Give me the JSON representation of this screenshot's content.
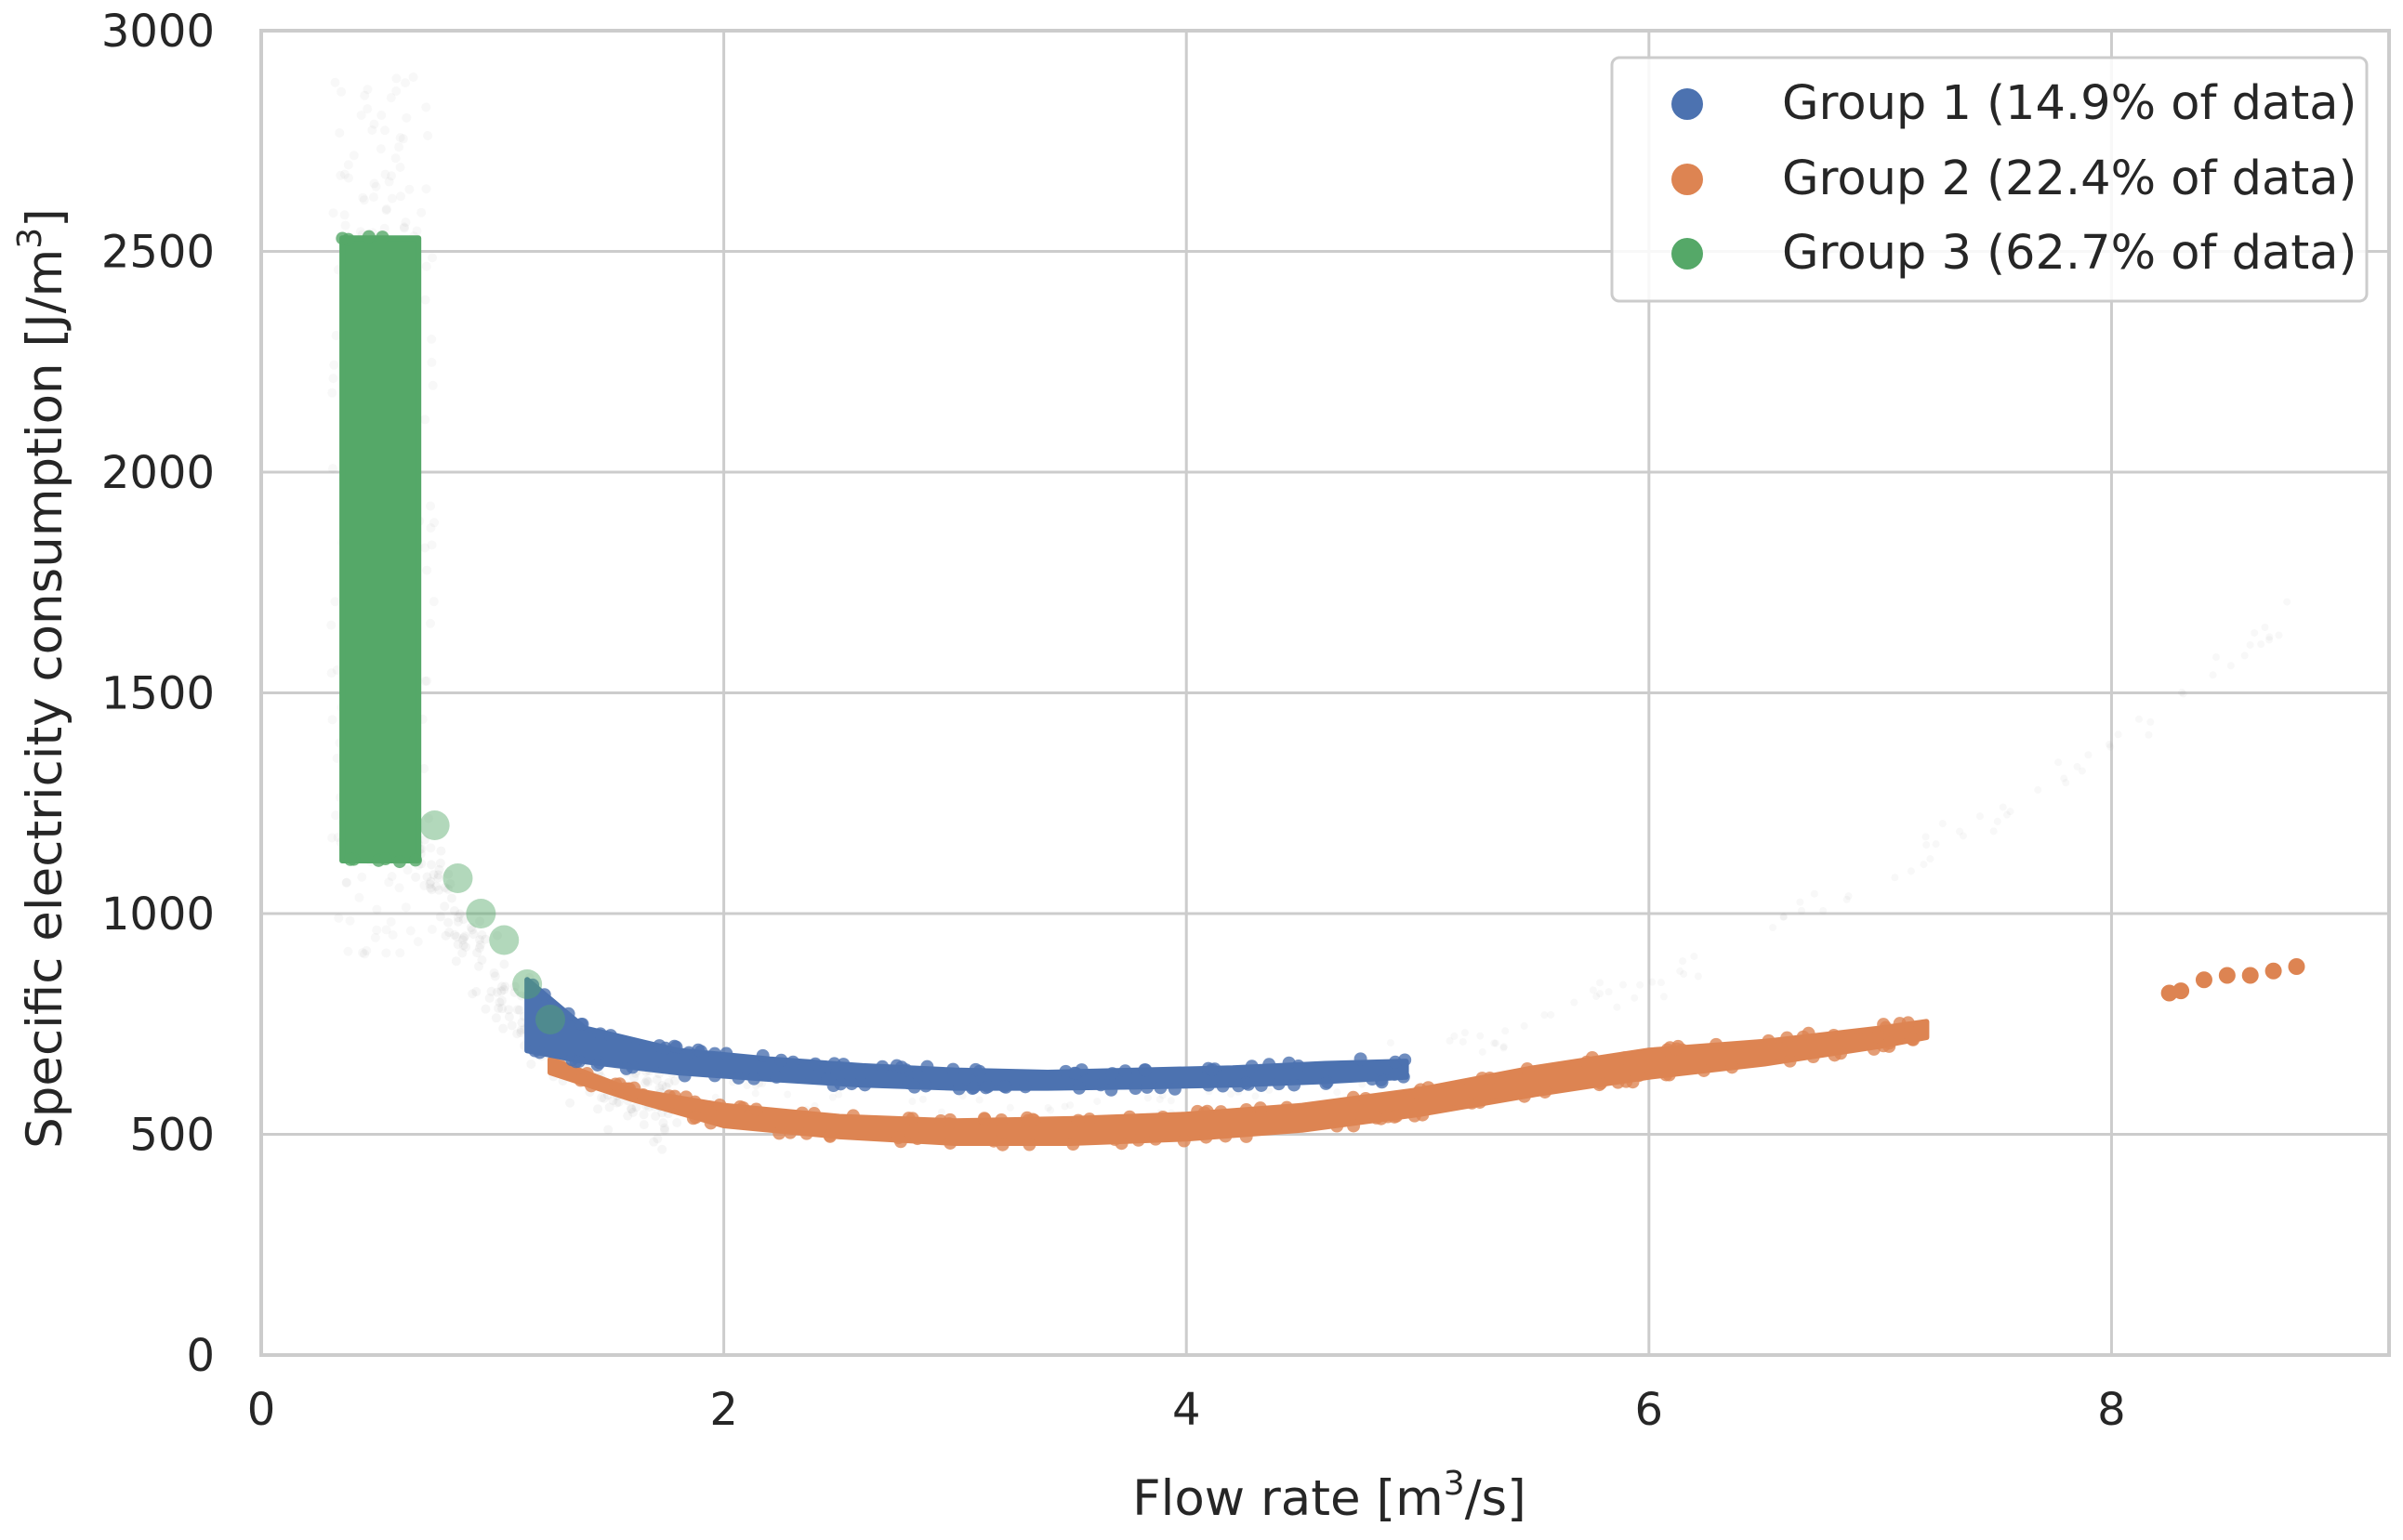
{
  "chart_data": {
    "type": "scatter",
    "title": "",
    "xlabel": "Flow rate [m3/s]",
    "xlabel_parts": {
      "pre": "Flow rate [m",
      "sup": "3",
      "post": "/s]"
    },
    "ylabel": "Specific electricity consumption [J/m3]",
    "ylabel_parts": {
      "pre": "Specific electricity consumption [J/m",
      "sup": "3",
      "post": "]"
    },
    "xlim": [
      0,
      9.2
    ],
    "ylim": [
      0,
      3000
    ],
    "x_ticks": [
      0,
      2,
      4,
      6,
      8
    ],
    "y_ticks": [
      0,
      500,
      1000,
      1500,
      2000,
      2500,
      3000
    ],
    "x_tick_labels": [
      "0",
      "2",
      "4",
      "6",
      "8"
    ],
    "y_tick_labels": [
      "0",
      "500",
      "1000",
      "1500",
      "2000",
      "2500",
      "3000"
    ],
    "grid": true,
    "legend_position": "top-right",
    "series": [
      {
        "name": "Group 1 (14.9% of data)",
        "color": "#4c72b0",
        "shape": "band",
        "x": [
          1.15,
          1.4,
          1.8,
          2.2,
          2.6,
          3.0,
          3.4,
          3.8,
          4.2,
          4.6,
          4.95
        ],
        "y_low": [
          690,
          665,
          640,
          625,
          612,
          605,
          605,
          608,
          612,
          620,
          630
        ],
        "y_high": [
          850,
          740,
          690,
          670,
          655,
          645,
          640,
          645,
          650,
          660,
          665
        ]
      },
      {
        "name": "Group 2 (22.4% of data)",
        "color": "#dd8452",
        "shape": "band",
        "x": [
          1.25,
          1.6,
          2.0,
          2.5,
          3.0,
          3.5,
          4.0,
          4.5,
          5.0,
          5.5,
          6.0,
          6.5,
          7.0,
          7.2
        ],
        "y_low": [
          640,
          580,
          520,
          495,
          480,
          480,
          490,
          510,
          545,
          590,
          630,
          660,
          700,
          720
        ],
        "y_high": [
          670,
          600,
          565,
          540,
          530,
          535,
          545,
          565,
          600,
          650,
          690,
          710,
          740,
          755
        ]
      },
      {
        "name": "Group 3 (62.7% of data)",
        "color": "#55a868",
        "shape": "band",
        "x": [
          0.35,
          0.68
        ],
        "y_low": [
          1120,
          1120
        ],
        "y_high": [
          2530,
          2530
        ]
      }
    ],
    "extra_points": {
      "group2_tail": [
        [
          8.25,
          820
        ],
        [
          8.3,
          825
        ],
        [
          8.4,
          850
        ],
        [
          8.5,
          860
        ],
        [
          8.6,
          860
        ],
        [
          8.7,
          870
        ],
        [
          8.8,
          880
        ]
      ],
      "group3_tail": [
        [
          0.75,
          1200
        ],
        [
          0.85,
          1080
        ],
        [
          0.95,
          1000
        ],
        [
          1.05,
          940
        ],
        [
          1.15,
          840
        ],
        [
          1.25,
          760
        ]
      ]
    },
    "background_cloud_color": "#888888"
  }
}
